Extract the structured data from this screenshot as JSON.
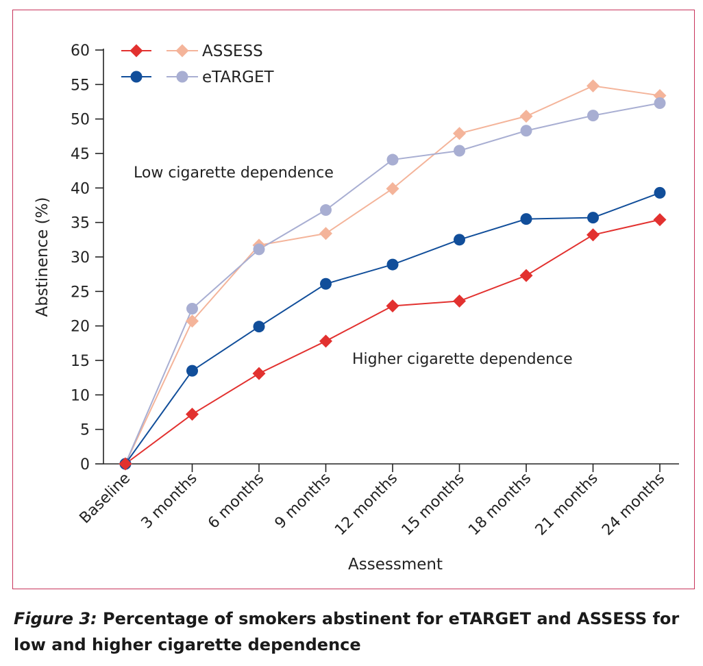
{
  "chart_data": {
    "type": "line",
    "xlabel": "Assessment",
    "ylabel": "Abstinence (%)",
    "ylim": [
      0,
      60
    ],
    "yticks": [
      0,
      5,
      10,
      15,
      20,
      25,
      30,
      35,
      40,
      45,
      50,
      55,
      60
    ],
    "categories": [
      "Baseline",
      "3 months",
      "6 months",
      "9 months",
      "12 months",
      "15 months",
      "18 months",
      "21 months",
      "24 months"
    ],
    "grid": false,
    "legend_position": "top-left",
    "legend": {
      "labels": [
        "ASSESS",
        "eTARGET"
      ]
    },
    "annotations": [
      "Low cigarette dependence",
      "Higher cigarette dependence"
    ],
    "series": [
      {
        "group": "Low cigarette dependence",
        "study": "ASSESS",
        "marker": "diamond",
        "color": "#f4b49a",
        "values": [
          0,
          20.7,
          31.7,
          33.4,
          39.9,
          47.9,
          50.4,
          54.8,
          53.4
        ]
      },
      {
        "group": "Low cigarette dependence",
        "study": "eTARGET",
        "marker": "circle",
        "color": "#a8aed2",
        "values": [
          0,
          22.5,
          31.1,
          36.8,
          44.1,
          45.4,
          48.3,
          50.5,
          52.3
        ]
      },
      {
        "group": "Higher cigarette dependence",
        "study": "eTARGET",
        "marker": "circle",
        "color": "#114e9a",
        "values": [
          0,
          13.5,
          19.9,
          26.1,
          28.9,
          32.5,
          35.5,
          35.7,
          39.3
        ]
      },
      {
        "group": "Higher cigarette dependence",
        "study": "ASSESS",
        "marker": "diamond",
        "color": "#e2312f",
        "values": [
          0,
          7.2,
          13.1,
          17.8,
          22.9,
          23.6,
          27.3,
          33.2,
          35.4
        ]
      }
    ]
  },
  "caption": {
    "label": "Figure 3:",
    "text": " Percentage of smokers abstinent for eTARGET and ASSESS for low and higher cigarette dependence"
  }
}
